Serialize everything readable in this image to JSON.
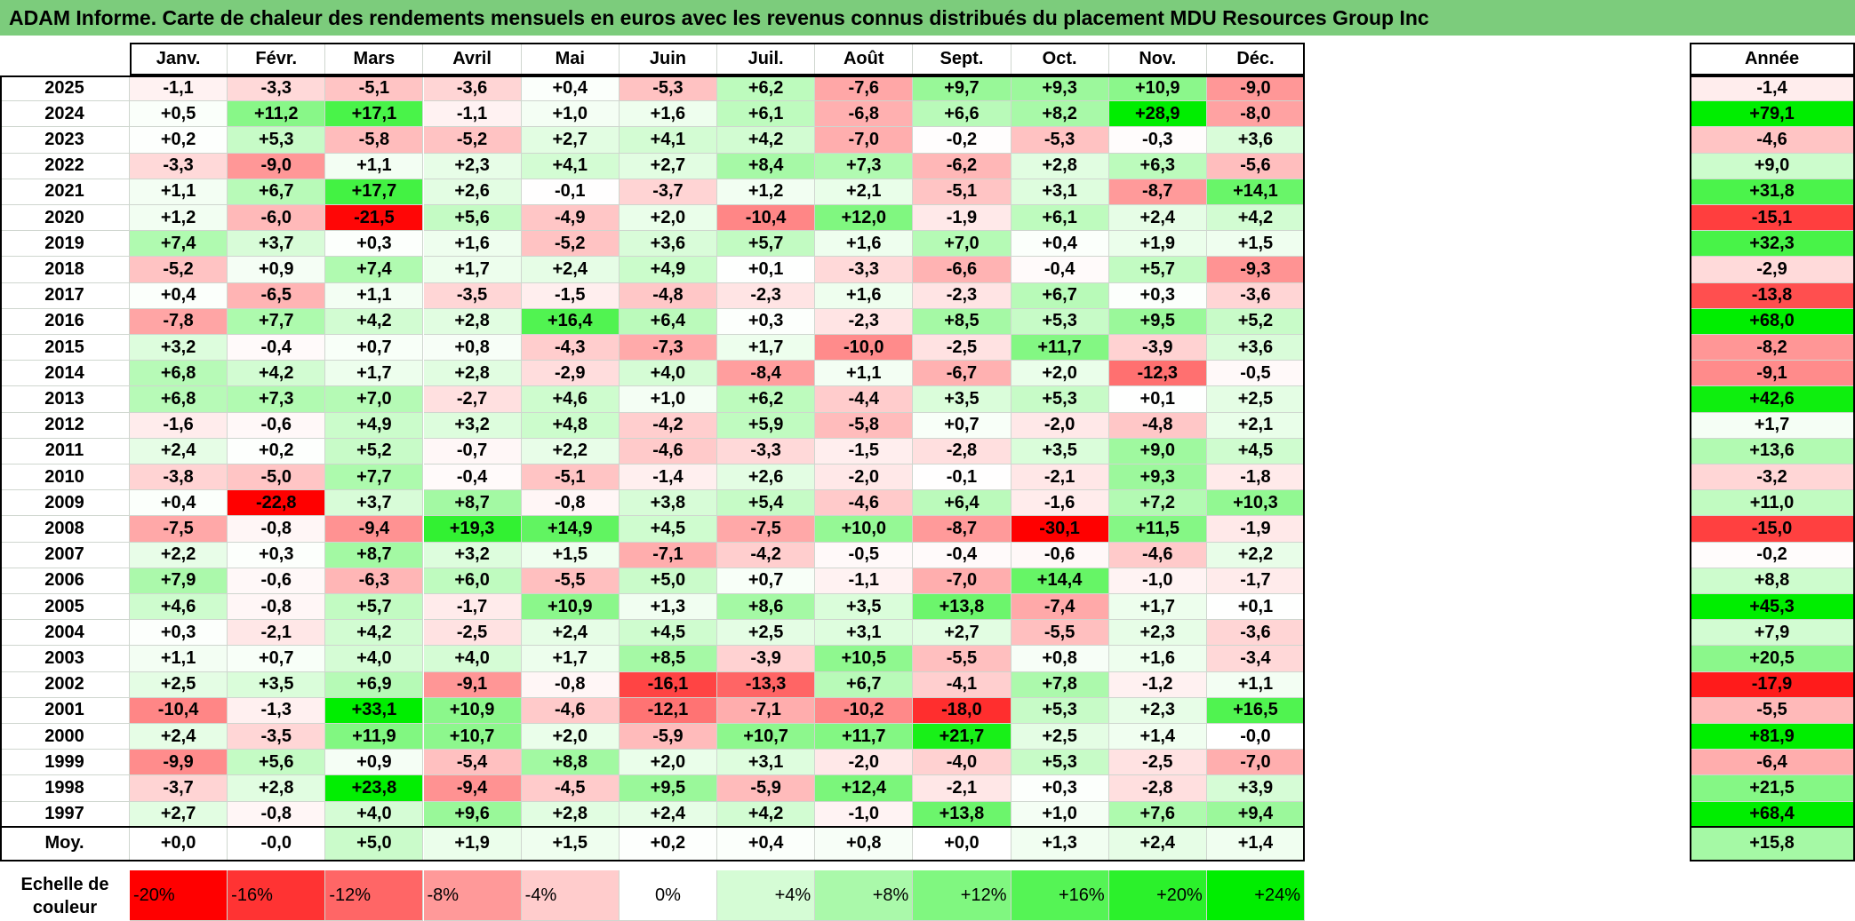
{
  "title": "ADAM Informe. Carte de chaleur des rendements mensuels en euros avec les revenus connus distribués du placement MDU Resources Group Inc",
  "chart_data": {
    "type": "heatmap",
    "months": [
      "Janv.",
      "Févr.",
      "Mars",
      "Avril",
      "Mai",
      "Juin",
      "Juil.",
      "Août",
      "Sept.",
      "Oct.",
      "Nov.",
      "Déc."
    ],
    "year_header": "Année",
    "rows": [
      {
        "year": "2025",
        "values": [
          "-1,1",
          "-3,3",
          "-5,1",
          "-3,6",
          "+0,4",
          "-5,3",
          "+6,2",
          "-7,6",
          "+9,7",
          "+9,3",
          "+10,9",
          "-9,0"
        ],
        "annual": "-1,4"
      },
      {
        "year": "2024",
        "values": [
          "+0,5",
          "+11,2",
          "+17,1",
          "-1,1",
          "+1,0",
          "+1,6",
          "+6,1",
          "-6,8",
          "+6,6",
          "+8,2",
          "+28,9",
          "-8,0"
        ],
        "annual": "+79,1"
      },
      {
        "year": "2023",
        "values": [
          "+0,2",
          "+5,3",
          "-5,8",
          "-5,2",
          "+2,7",
          "+4,1",
          "+4,2",
          "-7,0",
          "-0,2",
          "-5,3",
          "-0,3",
          "+3,6"
        ],
        "annual": "-4,6"
      },
      {
        "year": "2022",
        "values": [
          "-3,3",
          "-9,0",
          "+1,1",
          "+2,3",
          "+4,1",
          "+2,7",
          "+8,4",
          "+7,3",
          "-6,2",
          "+2,8",
          "+6,3",
          "-5,6"
        ],
        "annual": "+9,0"
      },
      {
        "year": "2021",
        "values": [
          "+1,1",
          "+6,7",
          "+17,7",
          "+2,6",
          "-0,1",
          "-3,7",
          "+1,2",
          "+2,1",
          "-5,1",
          "+3,1",
          "-8,7",
          "+14,1"
        ],
        "annual": "+31,8"
      },
      {
        "year": "2020",
        "values": [
          "+1,2",
          "-6,0",
          "-21,5",
          "+5,6",
          "-4,9",
          "+2,0",
          "-10,4",
          "+12,0",
          "-1,9",
          "+6,1",
          "+2,4",
          "+4,2"
        ],
        "annual": "-15,1"
      },
      {
        "year": "2019",
        "values": [
          "+7,4",
          "+3,7",
          "+0,3",
          "+1,6",
          "-5,2",
          "+3,6",
          "+5,7",
          "+1,6",
          "+7,0",
          "+0,4",
          "+1,9",
          "+1,5"
        ],
        "annual": "+32,3"
      },
      {
        "year": "2018",
        "values": [
          "-5,2",
          "+0,9",
          "+7,4",
          "+1,7",
          "+2,4",
          "+4,9",
          "+0,1",
          "-3,3",
          "-6,6",
          "-0,4",
          "+5,7",
          "-9,3"
        ],
        "annual": "-2,9"
      },
      {
        "year": "2017",
        "values": [
          "+0,4",
          "-6,5",
          "+1,1",
          "-3,5",
          "-1,5",
          "-4,8",
          "-2,3",
          "+1,6",
          "-2,3",
          "+6,7",
          "+0,3",
          "-3,6"
        ],
        "annual": "-13,8"
      },
      {
        "year": "2016",
        "values": [
          "-7,8",
          "+7,7",
          "+4,2",
          "+2,8",
          "+16,4",
          "+6,4",
          "+0,3",
          "-2,3",
          "+8,5",
          "+5,3",
          "+9,5",
          "+5,2"
        ],
        "annual": "+68,0"
      },
      {
        "year": "2015",
        "values": [
          "+3,2",
          "-0,4",
          "+0,7",
          "+0,8",
          "-4,3",
          "-7,3",
          "+1,7",
          "-10,0",
          "-2,5",
          "+11,7",
          "-3,9",
          "+3,6"
        ],
        "annual": "-8,2"
      },
      {
        "year": "2014",
        "values": [
          "+6,8",
          "+4,2",
          "+1,7",
          "+2,8",
          "-2,9",
          "+4,0",
          "-8,4",
          "+1,1",
          "-6,7",
          "+2,0",
          "-12,3",
          "-0,5"
        ],
        "annual": "-9,1"
      },
      {
        "year": "2013",
        "values": [
          "+6,8",
          "+7,3",
          "+7,0",
          "-2,7",
          "+4,6",
          "+1,0",
          "+6,2",
          "-4,4",
          "+3,5",
          "+5,3",
          "+0,1",
          "+2,5"
        ],
        "annual": "+42,6"
      },
      {
        "year": "2012",
        "values": [
          "-1,6",
          "-0,6",
          "+4,9",
          "+3,2",
          "+4,8",
          "-4,2",
          "+5,9",
          "-5,8",
          "+0,7",
          "-2,0",
          "-4,8",
          "+2,1"
        ],
        "annual": "+1,7"
      },
      {
        "year": "2011",
        "values": [
          "+2,4",
          "+0,2",
          "+5,2",
          "-0,7",
          "+2,2",
          "-4,6",
          "-3,3",
          "-1,5",
          "-2,8",
          "+3,5",
          "+9,0",
          "+4,5"
        ],
        "annual": "+13,6"
      },
      {
        "year": "2010",
        "values": [
          "-3,8",
          "-5,0",
          "+7,7",
          "-0,4",
          "-5,1",
          "-1,4",
          "+2,6",
          "-2,0",
          "-0,1",
          "-2,1",
          "+9,3",
          "-1,8"
        ],
        "annual": "-3,2"
      },
      {
        "year": "2009",
        "values": [
          "+0,4",
          "-22,8",
          "+3,7",
          "+8,7",
          "-0,8",
          "+3,8",
          "+5,4",
          "-4,6",
          "+6,4",
          "-1,6",
          "+7,2",
          "+10,3"
        ],
        "annual": "+11,0"
      },
      {
        "year": "2008",
        "values": [
          "-7,5",
          "-0,8",
          "-9,4",
          "+19,3",
          "+14,9",
          "+4,5",
          "-7,5",
          "+10,0",
          "-8,7",
          "-30,1",
          "+11,5",
          "-1,9"
        ],
        "annual": "-15,0"
      },
      {
        "year": "2007",
        "values": [
          "+2,2",
          "+0,3",
          "+8,7",
          "+3,2",
          "+1,5",
          "-7,1",
          "-4,2",
          "-0,5",
          "-0,4",
          "-0,6",
          "-4,6",
          "+2,2"
        ],
        "annual": "-0,2"
      },
      {
        "year": "2006",
        "values": [
          "+7,9",
          "-0,6",
          "-6,3",
          "+6,0",
          "-5,5",
          "+5,0",
          "+0,7",
          "-1,1",
          "-7,0",
          "+14,4",
          "-1,0",
          "-1,7"
        ],
        "annual": "+8,8"
      },
      {
        "year": "2005",
        "values": [
          "+4,6",
          "-0,8",
          "+5,7",
          "-1,7",
          "+10,9",
          "+1,3",
          "+8,6",
          "+3,5",
          "+13,8",
          "-7,4",
          "+1,7",
          "+0,1"
        ],
        "annual": "+45,3"
      },
      {
        "year": "2004",
        "values": [
          "+0,3",
          "-2,1",
          "+4,2",
          "-2,5",
          "+2,4",
          "+4,5",
          "+2,5",
          "+3,1",
          "+2,7",
          "-5,5",
          "+2,3",
          "-3,6"
        ],
        "annual": "+7,9"
      },
      {
        "year": "2003",
        "values": [
          "+1,1",
          "+0,7",
          "+4,0",
          "+4,0",
          "+1,7",
          "+8,5",
          "-3,9",
          "+10,5",
          "-5,5",
          "+0,8",
          "+1,6",
          "-3,4"
        ],
        "annual": "+20,5"
      },
      {
        "year": "2002",
        "values": [
          "+2,5",
          "+3,5",
          "+6,9",
          "-9,1",
          "-0,8",
          "-16,1",
          "-13,3",
          "+6,7",
          "-4,1",
          "+7,8",
          "-1,2",
          "+1,1"
        ],
        "annual": "-17,9"
      },
      {
        "year": "2001",
        "values": [
          "-10,4",
          "-1,3",
          "+33,1",
          "+10,9",
          "-4,6",
          "-12,1",
          "-7,1",
          "-10,2",
          "-18,0",
          "+5,3",
          "+2,3",
          "+16,5"
        ],
        "annual": "-5,5"
      },
      {
        "year": "2000",
        "values": [
          "+2,4",
          "-3,5",
          "+11,9",
          "+10,7",
          "+2,0",
          "-5,9",
          "+10,7",
          "+11,7",
          "+21,7",
          "+2,5",
          "+1,4",
          "-0,0"
        ],
        "annual": "+81,9"
      },
      {
        "year": "1999",
        "values": [
          "-9,9",
          "+5,6",
          "+0,9",
          "-5,4",
          "+8,8",
          "+2,0",
          "+3,1",
          "-2,0",
          "-4,0",
          "+5,3",
          "-2,5",
          "-7,0"
        ],
        "annual": "-6,4"
      },
      {
        "year": "1998",
        "values": [
          "-3,7",
          "+2,8",
          "+23,8",
          "-9,4",
          "-4,5",
          "+9,5",
          "-5,9",
          "+12,4",
          "-2,1",
          "+0,3",
          "-2,8",
          "+3,9"
        ],
        "annual": "+21,5"
      },
      {
        "year": "1997",
        "values": [
          "+2,7",
          "-0,8",
          "+4,0",
          "+9,6",
          "+2,8",
          "+2,4",
          "+4,2",
          "-1,0",
          "+13,8",
          "+1,0",
          "+7,6",
          "+9,4"
        ],
        "annual": "+68,4"
      }
    ],
    "average": {
      "label": "Moy.",
      "values": [
        "+0,0",
        "-0,0",
        "+5,0",
        "+1,9",
        "+1,5",
        "+0,2",
        "+0,4",
        "+0,8",
        "+0,0",
        "+1,3",
        "+2,4",
        "+1,4"
      ],
      "annual": "+15,8"
    },
    "legend": {
      "label_line1": "Echelle de",
      "label_line2": "couleur",
      "steps": [
        {
          "text": "-20%",
          "value": -20
        },
        {
          "text": "-16%",
          "value": -16
        },
        {
          "text": "-12%",
          "value": -12
        },
        {
          "text": "-8%",
          "value": -8
        },
        {
          "text": "-4%",
          "value": -4
        },
        {
          "text": "0%",
          "value": 0
        },
        {
          "text": "+4%",
          "value": 4
        },
        {
          "text": "+8%",
          "value": 8
        },
        {
          "text": "+12%",
          "value": 12
        },
        {
          "text": "+16%",
          "value": 16
        },
        {
          "text": "+20%",
          "value": 20
        },
        {
          "text": "+24%",
          "value": 24
        }
      ]
    },
    "colors": {
      "negative_max": "#ff0000",
      "neutral": "#ffffff",
      "positive_max": "#00ee00",
      "title_bg": "#7ccc7c"
    }
  }
}
